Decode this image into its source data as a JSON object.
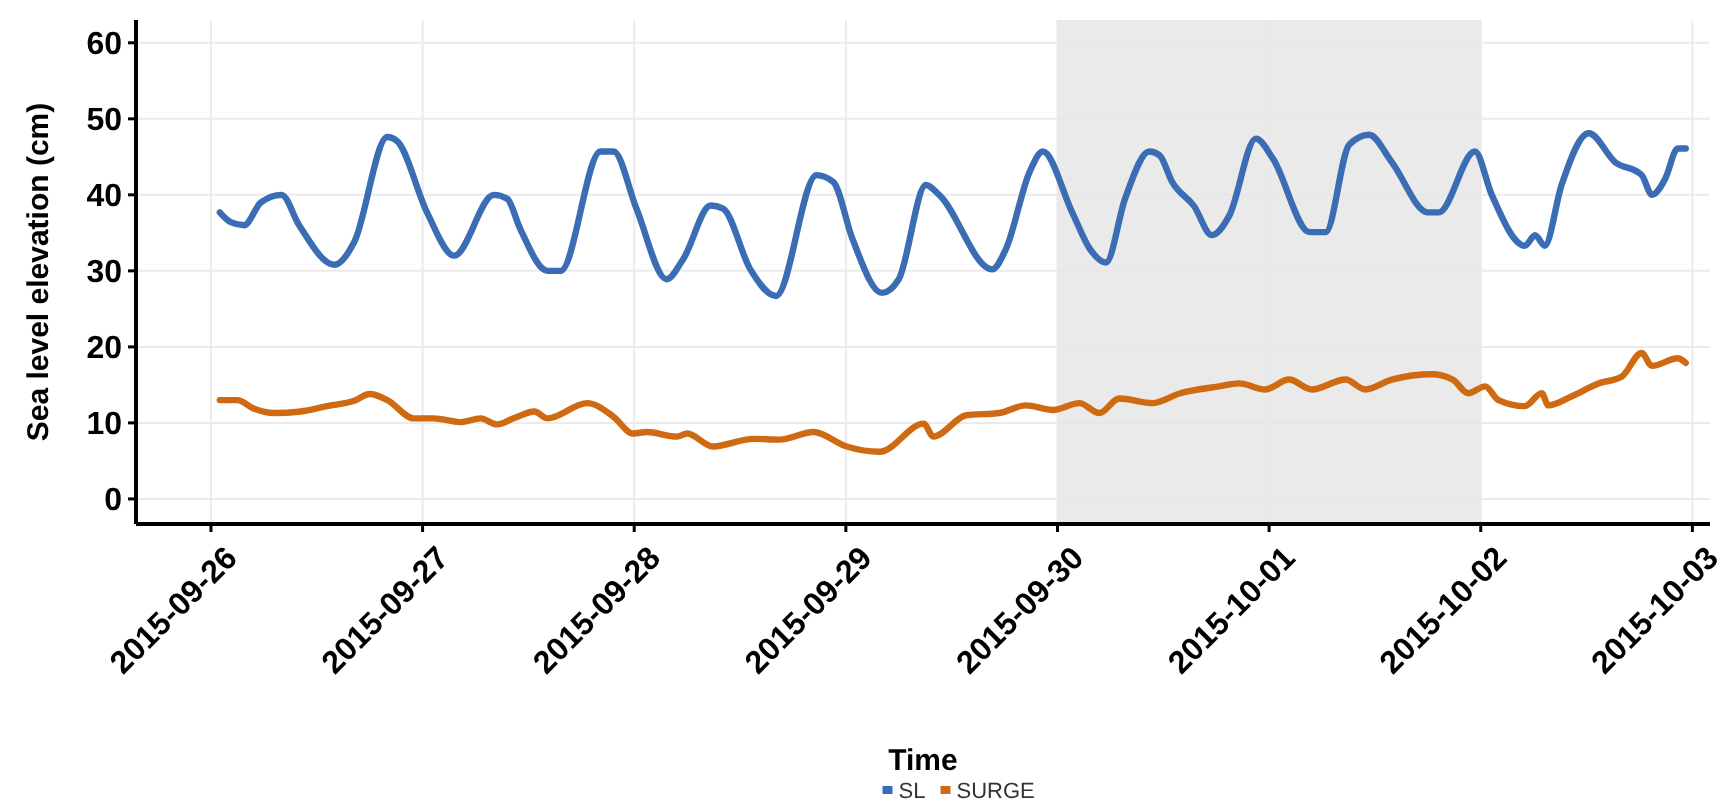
{
  "chart_data": {
    "type": "line",
    "xlabel": "Time",
    "ylabel": "Sea level elevation (cm)",
    "xlim": [
      "2015-09-25T15:30",
      "2015-10-03T02:00"
    ],
    "xticks": [
      {
        "value": "2015-09-26",
        "label": "2015-09-26"
      },
      {
        "value": "2015-09-27",
        "label": "2015-09-27"
      },
      {
        "value": "2015-09-28",
        "label": "2015-09-28"
      },
      {
        "value": "2015-09-29",
        "label": "2015-09-29"
      },
      {
        "value": "2015-09-30",
        "label": "2015-09-30"
      },
      {
        "value": "2015-10-01",
        "label": "2015-10-01"
      },
      {
        "value": "2015-10-02",
        "label": "2015-10-02"
      },
      {
        "value": "2015-10-03",
        "label": "2015-10-03"
      }
    ],
    "ylim": [
      -3.3,
      63
    ],
    "yticks": [
      0,
      10,
      20,
      30,
      40,
      50,
      60
    ],
    "grid": true,
    "legend": "bottom",
    "line_style": "solid",
    "bands": [
      {
        "axis": "x",
        "from": "2015-09-30",
        "to": "2015-10-02",
        "color": "#e6e6e6"
      }
    ],
    "series": [
      {
        "name": "SL",
        "color": "#3b6db4",
        "x": [
          "2015-09-26T01:00",
          "2015-09-26T02:15",
          "2015-09-26T03:45",
          "2015-09-26T05:40",
          "2015-09-26T08:00",
          "2015-09-26T10:00",
          "2015-09-26T14:00",
          "2015-09-26T16:15",
          "2015-09-26T20:00",
          "2015-09-26T21:10",
          "2015-09-27T00:30",
          "2015-09-27T03:35",
          "2015-09-27T08:05",
          "2015-09-27T09:35",
          "2015-09-27T11:05",
          "2015-09-27T14:10",
          "2015-09-27T15:40",
          "2015-09-27T20:10",
          "2015-09-27T21:40",
          "2015-09-28T00:15",
          "2015-09-28T03:40",
          "2015-09-28T05:35",
          "2015-09-28T08:40",
          "2015-09-28T10:05",
          "2015-09-28T13:10",
          "2015-09-28T16:05",
          "2015-09-28T20:40",
          "2015-09-28T22:35",
          "2015-09-29T00:45",
          "2015-09-29T04:05",
          "2015-09-29T06:00",
          "2015-09-29T09:05",
          "2015-09-29T10:35",
          "2015-09-29T16:35",
          "2015-09-29T18:10",
          "2015-09-29T20:50",
          "2015-09-29T22:20",
          "2015-09-30T01:40",
          "2015-09-30T03:40",
          "2015-09-30T05:30",
          "2015-09-30T07:40",
          "2015-09-30T10:25",
          "2015-09-30T11:35",
          "2015-09-30T13:00",
          "2015-09-30T15:30",
          "2015-09-30T17:30",
          "2015-09-30T19:30",
          "2015-09-30T22:30",
          "2015-10-01T00:25",
          "2015-10-01T04:35",
          "2015-10-01T06:25",
          "2015-10-01T09:05",
          "2015-10-01T11:20",
          "2015-10-01T13:55",
          "2015-10-01T18:00",
          "2015-10-01T19:15",
          "2015-10-01T23:20",
          "2015-10-02T01:15",
          "2015-10-02T05:00",
          "2015-10-02T06:10",
          "2015-10-02T07:15",
          "2015-10-02T09:10",
          "2015-10-02T12:15",
          "2015-10-02T15:15",
          "2015-10-02T18:15",
          "2015-10-02T19:25",
          "2015-10-02T20:55",
          "2015-10-02T22:20",
          "2015-10-02T23:15"
        ],
        "values": [
          37.7,
          36.4,
          36.0,
          39.0,
          40.0,
          36.0,
          30.8,
          33.8,
          47.6,
          47.0,
          37.7,
          32.0,
          40.0,
          39.5,
          35.5,
          30.0,
          30.0,
          45.7,
          45.7,
          38.2,
          28.9,
          31.6,
          38.6,
          38.2,
          30.2,
          26.7,
          42.6,
          41.7,
          34.2,
          27.1,
          28.9,
          41.3,
          40.0,
          30.2,
          32.9,
          43.0,
          45.7,
          37.7,
          32.9,
          31.1,
          39.5,
          45.7,
          45.2,
          41.7,
          38.5,
          34.7,
          37.3,
          47.4,
          44.8,
          35.1,
          35.1,
          46.6,
          47.9,
          44.3,
          37.7,
          37.7,
          45.7,
          40.0,
          33.3,
          34.7,
          33.3,
          41.3,
          48.1,
          44.3,
          42.6,
          40.0,
          42.1,
          46.1,
          46.1
        ]
      },
      {
        "name": "SURGE",
        "color": "#cf6a12",
        "x": [
          "2015-09-26T01:00",
          "2015-09-26T03:00",
          "2015-09-26T04:50",
          "2015-09-26T07:10",
          "2015-09-26T10:10",
          "2015-09-26T13:10",
          "2015-09-26T16:15",
          "2015-09-26T18:00",
          "2015-09-26T20:00",
          "2015-09-26T23:00",
          "2015-09-27T01:15",
          "2015-09-27T04:15",
          "2015-09-27T06:35",
          "2015-09-27T08:25",
          "2015-09-27T10:20",
          "2015-09-27T12:40",
          "2015-09-27T14:10",
          "2015-09-27T18:40",
          "2015-09-27T21:40",
          "2015-09-27T23:50",
          "2015-09-28T01:25",
          "2015-09-28T04:50",
          "2015-09-28T06:00",
          "2015-09-28T08:55",
          "2015-09-28T13:30",
          "2015-09-28T16:30",
          "2015-09-28T20:20",
          "2015-09-29T00:05",
          "2015-09-29T03:50",
          "2015-09-29T08:50",
          "2015-09-29T09:55",
          "2015-09-29T13:40",
          "2015-09-29T17:25",
          "2015-09-29T20:25",
          "2015-09-29T23:30",
          "2015-09-30T02:30",
          "2015-09-30T04:45",
          "2015-09-30T07:00",
          "2015-09-30T10:50",
          "2015-09-30T13:55",
          "2015-09-30T18:20",
          "2015-09-30T20:35",
          "2015-09-30T23:35",
          "2015-10-01T02:15",
          "2015-10-01T04:50",
          "2015-10-01T08:40",
          "2015-10-01T10:55",
          "2015-10-01T13:55",
          "2015-10-01T18:30",
          "2015-10-01T20:50",
          "2015-10-01T22:35",
          "2015-10-02T00:30",
          "2015-10-02T02:00",
          "2015-10-02T05:00",
          "2015-10-02T06:55",
          "2015-10-02T07:40",
          "2015-10-02T10:20",
          "2015-10-02T13:25",
          "2015-10-02T16:00",
          "2015-10-02T18:15",
          "2015-10-02T19:25",
          "2015-10-02T22:20",
          "2015-10-02T23:15"
        ],
        "values": [
          13.0,
          13.0,
          11.9,
          11.3,
          11.5,
          12.2,
          12.9,
          13.8,
          13.0,
          10.6,
          10.6,
          10.1,
          10.6,
          9.8,
          10.6,
          11.5,
          10.6,
          12.6,
          10.8,
          8.6,
          8.8,
          8.2,
          8.6,
          6.9,
          7.9,
          7.8,
          8.8,
          6.9,
          6.2,
          9.9,
          8.2,
          11.0,
          11.3,
          12.3,
          11.7,
          12.6,
          11.3,
          13.2,
          12.6,
          13.9,
          14.8,
          15.2,
          14.4,
          15.7,
          14.4,
          15.7,
          14.4,
          15.7,
          16.4,
          15.7,
          13.9,
          14.8,
          13.0,
          12.2,
          13.9,
          12.3,
          13.5,
          15.2,
          16.1,
          19.2,
          17.5,
          18.5,
          17.9
        ]
      }
    ]
  }
}
